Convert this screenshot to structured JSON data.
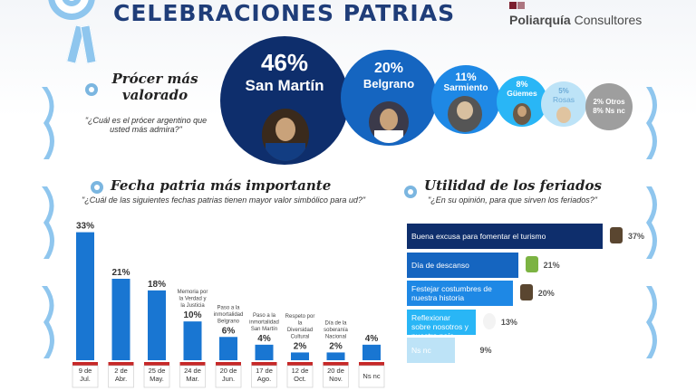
{
  "header": {
    "title": "CELEBRACIONES PATRIAS",
    "brand_bold": "Poliarquía",
    "brand_rest": " Consultores"
  },
  "colors": {
    "dark_navy": "#0e2e6c",
    "blue": "#1565c0",
    "light_blue": "#1e88e5",
    "cyan": "#29b6f6",
    "pale": "#bde3f7",
    "grey": "#9e9e9e"
  },
  "proceres": {
    "title": "Prócer más valorado",
    "question": "\"¿Cuál es el prócer argentino que usted más admira?\"",
    "chart_data": {
      "type": "bubble",
      "categories": [
        "San Martín",
        "Belgrano",
        "Sarmiento",
        "Güemes",
        "Rosas",
        "Otros",
        "Ns nc"
      ],
      "values": [
        46,
        20,
        11,
        8,
        5,
        2,
        8
      ],
      "labels": [
        "46%",
        "20%",
        "11%",
        "8%",
        "5%",
        "2% Otros",
        "8% Ns nc"
      ]
    }
  },
  "fechas": {
    "title": "Fecha patria más importante",
    "question": "\"¿Cuál de las siguientes fechas patrias tienen mayor valor simbólico para ud?\"",
    "chart_data": {
      "type": "bar",
      "categories": [
        "9 de Jul.",
        "2 de Abr.",
        "25 de May.",
        "24 de Mar.",
        "20 de Jun.",
        "17 de Ago.",
        "12 de Oct.",
        "20 de Nov.",
        "Ns nc"
      ],
      "values": [
        33,
        21,
        18,
        10,
        6,
        4,
        2,
        2,
        4
      ],
      "value_labels": [
        "33%",
        "21%",
        "18%",
        "10%",
        "6%",
        "4%",
        "2%",
        "2%",
        "4%"
      ],
      "descriptions": [
        "",
        "",
        "",
        "Memoria por la Verdad y la Justicia",
        "Paso a la inmortalidad Belgrano",
        "Paso a la inmortalidad San Martín",
        "Respeto por la Diversidad Cultural",
        "Día de la soberanía Nacional",
        ""
      ],
      "ylim": [
        0,
        35
      ]
    }
  },
  "feriados": {
    "title": "Utilidad de los feriados",
    "question": "\"¿En su opinión, para que sirven los feriados?\"",
    "chart_data": {
      "type": "bar",
      "orientation": "horizontal",
      "categories": [
        "Buena excusa para fomentar el turismo",
        "Día de descanso",
        "Festejar costumbres de nuestra historia",
        "Reflexionar sobre nosotros y nuestro país",
        "Ns nc"
      ],
      "values": [
        37,
        21,
        20,
        13,
        9
      ],
      "value_labels": [
        "37%",
        "21%",
        "20%",
        "13%",
        "9%"
      ],
      "colors": [
        "#0e2e6c",
        "#1565c0",
        "#1e88e5",
        "#29b6f6",
        "#bde3f7"
      ]
    }
  }
}
